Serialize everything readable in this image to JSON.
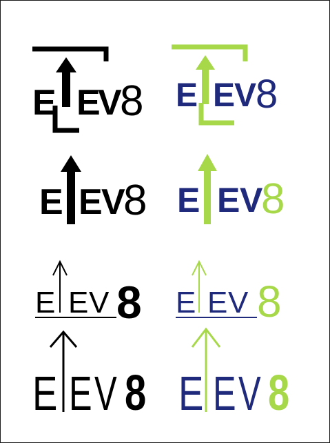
{
  "sheet": {
    "logos": [
      {
        "variant": "bracket-bold",
        "color_scheme": "black",
        "letters": [
          "E",
          "E",
          "V",
          "8"
        ]
      },
      {
        "variant": "bracket-bold",
        "color_scheme": "navy-green",
        "letters": [
          "E",
          "E",
          "V",
          "8"
        ]
      },
      {
        "variant": "arrow-bold",
        "color_scheme": "black",
        "letters": [
          "E",
          "E",
          "V",
          "8"
        ]
      },
      {
        "variant": "arrow-bold",
        "color_scheme": "navy-green",
        "letters": [
          "E",
          "E",
          "V",
          "8"
        ]
      },
      {
        "variant": "thin-underline",
        "color_scheme": "black",
        "letters": [
          "E",
          "E",
          "V",
          "8"
        ]
      },
      {
        "variant": "thin-underline",
        "color_scheme": "navy-green",
        "letters": [
          "E",
          "E",
          "V",
          "8"
        ]
      },
      {
        "variant": "thin-tall",
        "color_scheme": "black",
        "letters": [
          "E",
          "E",
          "V",
          "8"
        ]
      },
      {
        "variant": "thin-tall",
        "color_scheme": "navy-green",
        "letters": [
          "E",
          "E",
          "V",
          "8"
        ]
      }
    ]
  },
  "colors": {
    "black": "#000000",
    "navy": "#1f2a7d",
    "green": "#a6d84a",
    "page_border": "#1a1a1a",
    "background": "#ffffff"
  }
}
